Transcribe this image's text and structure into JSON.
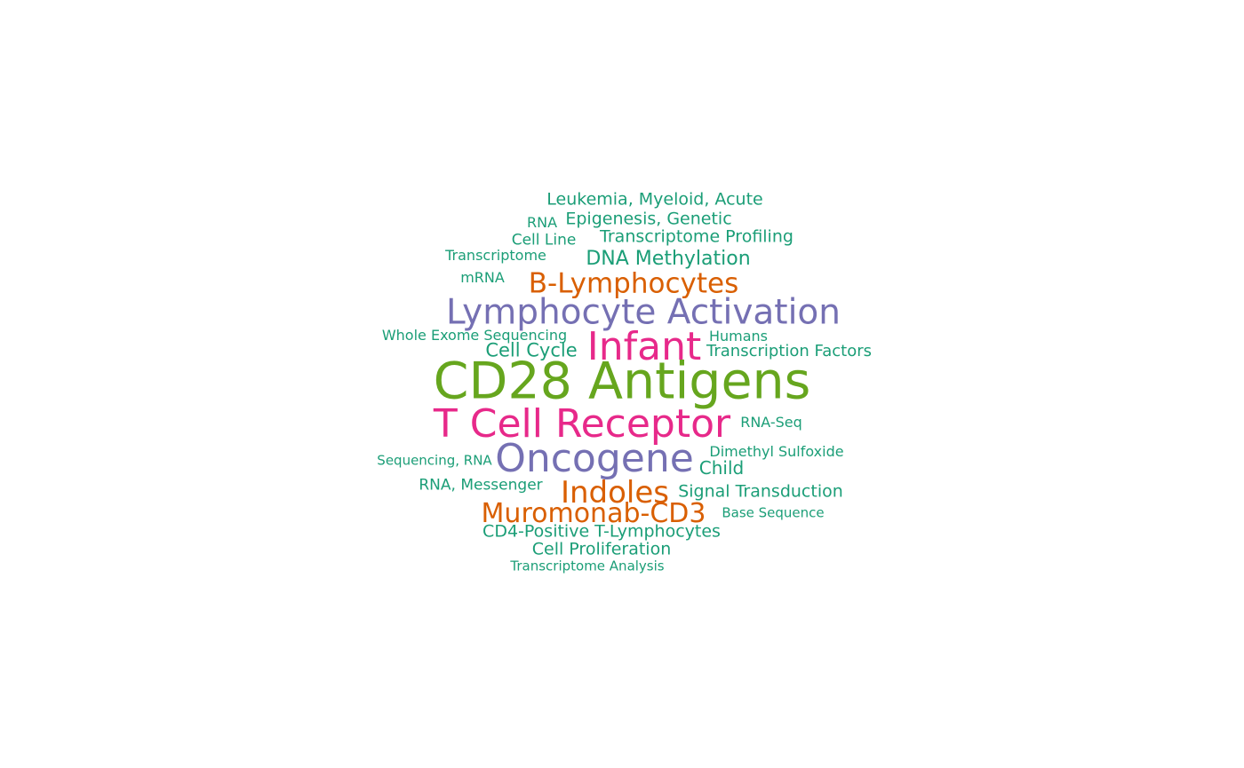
{
  "word_cloud": {
    "palette": {
      "green": "#1b9e77",
      "lime": "#66a61e",
      "purple": "#7570b3",
      "pink": "#e7298a",
      "orange": "#d95f02"
    },
    "words": {
      "leukemia": "Leukemia, Myeloid, Acute",
      "rna": "RNA",
      "epigenesis": "Epigenesis, Genetic",
      "cell_line": "Cell Line",
      "transcriptome_profiling": "Transcriptome Profiling",
      "transcriptome": "Transcriptome",
      "dna_methylation": "DNA Methylation",
      "mrna": "mRNA",
      "b_lymphocytes": "B-Lymphocytes",
      "lymphocyte_activation": "Lymphocyte Activation",
      "whole_exome_sequencing": "Whole Exome Sequencing",
      "infant": "Infant",
      "humans": "Humans",
      "cell_cycle": "Cell Cycle",
      "transcription_factors": "Transcription Factors",
      "cd28_antigens": "CD28 Antigens",
      "t_cell_receptor": "T Cell Receptor",
      "rna_seq": "RNA-Seq",
      "dimethyl_sulfoxide": "Dimethyl Sulfoxide",
      "sequencing_rna": "Sequencing, RNA",
      "oncogene": "Oncogene",
      "child": "Child",
      "rna_messenger": "RNA, Messenger",
      "indoles": "Indoles",
      "signal_transduction": "Signal Transduction",
      "muromonab_cd3": "Muromonab-CD3",
      "base_sequence": "Base Sequence",
      "cd4_positive": "CD4-Positive T-Lymphocytes",
      "cell_proliferation": "Cell Proliferation",
      "transcriptome_analysis": "Transcriptome Analysis"
    }
  }
}
